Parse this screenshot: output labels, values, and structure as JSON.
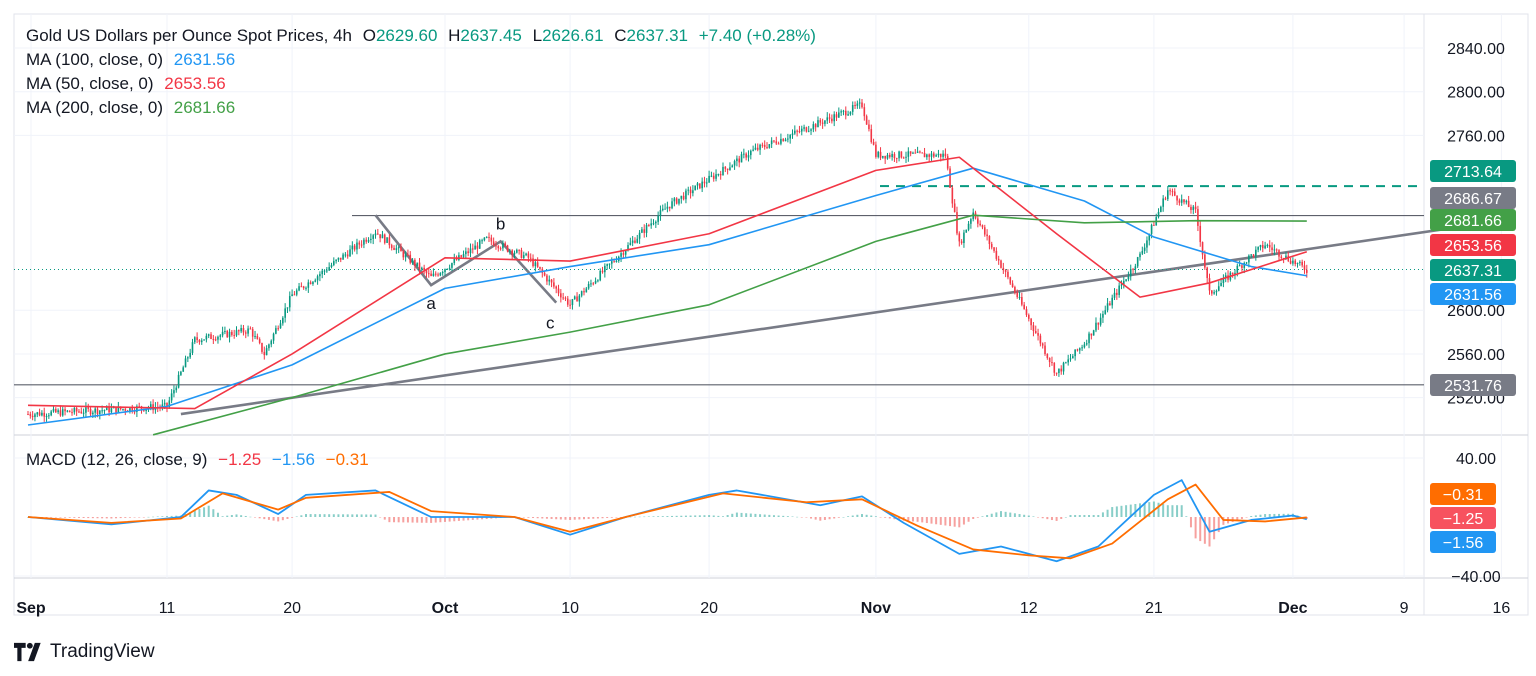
{
  "header": {
    "symbol": "Gold US Dollars per Ounce Spot Prices, 4h",
    "o_label": "O",
    "o_value": "2629.60",
    "h_label": "H",
    "h_value": "2637.45",
    "l_label": "L",
    "l_value": "2626.61",
    "c_label": "C",
    "c_value": "2637.31",
    "change": "+7.40 (+0.28%)"
  },
  "ma_legend": [
    {
      "label": "MA (100, close, 0)",
      "value": "2631.56",
      "color": "#2196f3"
    },
    {
      "label": "MA (50, close, 0)",
      "value": "2653.56",
      "color": "#f23645"
    },
    {
      "label": "MA (200, close, 0)",
      "value": "2681.66",
      "color": "#43a047"
    }
  ],
  "macd_legend": {
    "label": "MACD (12, 26, close, 9)",
    "hist": "−1.25",
    "macd": "−1.56",
    "signal": "−0.31",
    "hist_color": "#f23645",
    "macd_color": "#2196f3",
    "signal_color": "#ff6d00"
  },
  "brand": "TradingView",
  "chart_data": [
    {
      "type": "candlestick",
      "title": "Gold US Dollars per Ounce Spot Prices, 4h",
      "x_tick_labels": [
        "Sep",
        "11",
        "20",
        "Oct",
        "10",
        "20",
        "Nov",
        "12",
        "21",
        "Dec",
        "9",
        "16"
      ],
      "y_tick_labels": [
        "2840.00",
        "2800.00",
        "2760.00",
        "2600.00",
        "2560.00",
        "2520.00"
      ],
      "ylim": [
        2505,
        2865
      ],
      "price_path": [
        [
          "Sep 1",
          2505
        ],
        [
          "Sep 11",
          2512
        ],
        [
          "Sep 13",
          2573
        ],
        [
          "Sep 17",
          2582
        ],
        [
          "Sep 18",
          2560
        ],
        [
          "Sep 20",
          2614
        ],
        [
          "Sep 26",
          2672
        ],
        [
          "Sep 30",
          2630
        ],
        [
          "Oct 4",
          2665
        ],
        [
          "Oct 7",
          2648
        ],
        [
          "Oct 10",
          2605
        ],
        [
          "Oct 17",
          2695
        ],
        [
          "Oct 23",
          2745
        ],
        [
          "Oct 31",
          2788
        ],
        [
          "Nov 1",
          2742
        ],
        [
          "Nov 6",
          2742
        ],
        [
          "Nov 7",
          2660
        ],
        [
          "Nov 8",
          2690
        ],
        [
          "Nov 11",
          2617
        ],
        [
          "Nov 14",
          2542
        ],
        [
          "Nov 16",
          2570
        ],
        [
          "Nov 20",
          2650
        ],
        [
          "Nov 22",
          2710
        ],
        [
          "Nov 24",
          2690
        ],
        [
          "Nov 25",
          2615
        ],
        [
          "Nov 28",
          2650
        ],
        [
          "Nov 29",
          2660
        ],
        [
          "Dec 2",
          2637
        ]
      ],
      "ma_series": [
        {
          "name": "MA (100, close, 0)",
          "color": "#2196f3",
          "value": 2631.56,
          "points": [
            [
              "Sep 1",
              2495
            ],
            [
              "Sep 11",
              2512
            ],
            [
              "Sep 20",
              2550
            ],
            [
              "Oct 1",
              2620
            ],
            [
              "Oct 10",
              2640
            ],
            [
              "Oct 20",
              2660
            ],
            [
              "Nov 1",
              2705
            ],
            [
              "Nov 8",
              2730
            ],
            [
              "Nov 16",
              2700
            ],
            [
              "Nov 21",
              2667
            ],
            [
              "Nov 28",
              2640
            ],
            [
              "Dec 2",
              2631.56
            ]
          ]
        },
        {
          "name": "MA (50, close, 0)",
          "color": "#f23645",
          "value": 2653.56,
          "points": [
            [
              "Sep 1",
              2513
            ],
            [
              "Sep 13",
              2510
            ],
            [
              "Sep 20",
              2560
            ],
            [
              "Oct 1",
              2648
            ],
            [
              "Oct 10",
              2645
            ],
            [
              "Oct 20",
              2670
            ],
            [
              "Nov 1",
              2728
            ],
            [
              "Nov 7",
              2740
            ],
            [
              "Nov 14",
              2670
            ],
            [
              "Nov 20",
              2612
            ],
            [
              "Nov 25",
              2625
            ],
            [
              "Dec 2",
              2653.56
            ]
          ]
        },
        {
          "name": "MA (200, close, 0)",
          "color": "#43a047",
          "value": 2681.66,
          "points": [
            [
              "Sep 10",
              2486
            ],
            [
              "Sep 20",
              2520
            ],
            [
              "Oct 1",
              2560
            ],
            [
              "Oct 10",
              2580
            ],
            [
              "Oct 20",
              2605
            ],
            [
              "Nov 1",
              2663
            ],
            [
              "Nov 8",
              2687
            ],
            [
              "Nov 16",
              2680
            ],
            [
              "Nov 24",
              2682
            ],
            [
              "Dec 2",
              2681.66
            ]
          ]
        }
      ],
      "price_labels": [
        {
          "value": "2713.64",
          "color": "#089981"
        },
        {
          "value": "2686.67",
          "color": "#787b86"
        },
        {
          "value": "2681.66",
          "color": "#43a047"
        },
        {
          "value": "2653.56",
          "color": "#f23645"
        },
        {
          "value": "2637.31",
          "color": "#089981"
        },
        {
          "value": "2631.56",
          "color": "#2196f3"
        },
        {
          "value": "2531.76",
          "color": "#787b86"
        }
      ],
      "drawings": {
        "resistance": 2686.67,
        "dashed_level": 2713.64,
        "support": 2531.76,
        "trendline": [
          [
            "Sep 12",
            2505
          ],
          [
            "Dec 15",
            2680
          ]
        ],
        "abc_path": [
          [
            "Sep 26",
            2687
          ],
          [
            "Sep 30",
            2623
          ],
          [
            "Oct 5",
            2663
          ],
          [
            "Oct 9",
            2607
          ]
        ],
        "abc_labels": [
          "a",
          "b",
          "c"
        ]
      },
      "colors": {
        "up": "#089981",
        "down": "#f23645"
      }
    },
    {
      "type": "macd",
      "title": "MACD (12, 26, close, 9)",
      "y_tick_labels": [
        "40.00",
        "−40.00"
      ],
      "ylim": [
        -45,
        45
      ],
      "macd_points": [
        [
          "Sep 1",
          0
        ],
        [
          "Sep 7",
          -5
        ],
        [
          "Sep 12",
          0
        ],
        [
          "Sep 14",
          18
        ],
        [
          "Sep 16",
          15
        ],
        [
          "Sep 19",
          2
        ],
        [
          "Sep 21",
          15
        ],
        [
          "Sep 26",
          18
        ],
        [
          "Sep 30",
          0
        ],
        [
          "Oct 6",
          0
        ],
        [
          "Oct 10",
          -12
        ],
        [
          "Oct 14",
          0
        ],
        [
          "Oct 20",
          15
        ],
        [
          "Oct 22",
          18
        ],
        [
          "Oct 28",
          8
        ],
        [
          "Oct 31",
          14
        ],
        [
          "Nov 3",
          -4
        ],
        [
          "Nov 7",
          -25
        ],
        [
          "Nov 10",
          -20
        ],
        [
          "Nov 14",
          -30
        ],
        [
          "Nov 17",
          -20
        ],
        [
          "Nov 21",
          15
        ],
        [
          "Nov 23",
          25
        ],
        [
          "Nov 25",
          -10
        ],
        [
          "Nov 28",
          -2
        ],
        [
          "Dec 1",
          1
        ],
        [
          "Dec 2",
          -1.56
        ]
      ],
      "signal_points": [
        [
          "Sep 1",
          0
        ],
        [
          "Sep 7",
          -4
        ],
        [
          "Sep 12",
          -1
        ],
        [
          "Sep 15",
          16
        ],
        [
          "Sep 19",
          5
        ],
        [
          "Sep 21",
          13
        ],
        [
          "Sep 27",
          17
        ],
        [
          "Sep 30",
          4
        ],
        [
          "Oct 6",
          0
        ],
        [
          "Oct 10",
          -10
        ],
        [
          "Oct 14",
          0
        ],
        [
          "Oct 21",
          16
        ],
        [
          "Oct 27",
          10
        ],
        [
          "Oct 31",
          12
        ],
        [
          "Nov 4",
          -6
        ],
        [
          "Nov 8",
          -22
        ],
        [
          "Nov 12",
          -26
        ],
        [
          "Nov 15",
          -28
        ],
        [
          "Nov 18",
          -18
        ],
        [
          "Nov 22",
          12
        ],
        [
          "Nov 24",
          22
        ],
        [
          "Nov 26",
          -2
        ],
        [
          "Nov 29",
          -3
        ],
        [
          "Dec 2",
          -0.31
        ]
      ],
      "histogram": -1.25
    }
  ]
}
